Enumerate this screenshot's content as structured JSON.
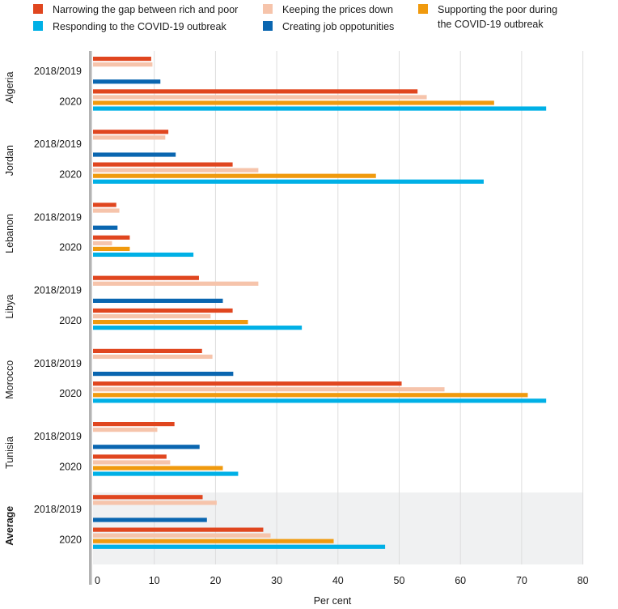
{
  "chart_data": {
    "type": "bar",
    "orientation": "horizontal",
    "xlabel": "Per cent",
    "xlim": [
      0,
      80
    ],
    "xticks": [
      0,
      10,
      20,
      30,
      40,
      50,
      60,
      70,
      80
    ],
    "grid": true,
    "legend_position": "top",
    "series": [
      {
        "key": "gap",
        "name": "Narrowing the gap between rich and poor",
        "color": "#e0461f"
      },
      {
        "key": "prices",
        "name": "Keeping the prices down",
        "color": "#f6c4ab"
      },
      {
        "key": "covid_poor",
        "name": [
          "Supporting the poor during",
          "the COVID-19 outbreak"
        ],
        "color": "#f09a0e"
      },
      {
        "key": "covid",
        "name": "Responding to the COVID-19 outbreak",
        "color": "#00b0e6"
      },
      {
        "key": "jobs",
        "name": "Creating job oppotunities",
        "color": "#0a66b0"
      }
    ],
    "groups": [
      {
        "name": "Algeria",
        "bold": false,
        "highlight": false,
        "periods": [
          {
            "label": "2018/2019",
            "values": {
              "gap": 9.5,
              "prices": 9.7,
              "jobs": 11
            }
          },
          {
            "label": "2020",
            "values": {
              "gap": 53,
              "prices": 54.5,
              "covid_poor": 65.5,
              "covid": 74
            }
          }
        ]
      },
      {
        "name": "Jordan",
        "bold": false,
        "highlight": false,
        "periods": [
          {
            "label": "2018/2019",
            "values": {
              "gap": 12.3,
              "prices": 11.8,
              "jobs": 13.5
            }
          },
          {
            "label": "2020",
            "values": {
              "gap": 22.8,
              "prices": 27,
              "covid_poor": 46.2,
              "covid": 63.8
            }
          }
        ]
      },
      {
        "name": "Lebanon",
        "bold": false,
        "highlight": false,
        "periods": [
          {
            "label": "2018/2019",
            "values": {
              "gap": 3.8,
              "prices": 4.3,
              "jobs": 4
            }
          },
          {
            "label": "2020",
            "values": {
              "gap": 6,
              "prices": 3.1,
              "covid_poor": 6,
              "covid": 16.4
            }
          }
        ]
      },
      {
        "name": "Libya",
        "bold": false,
        "highlight": false,
        "periods": [
          {
            "label": "2018/2019",
            "values": {
              "gap": 17.3,
              "prices": 27,
              "jobs": 21.2
            }
          },
          {
            "label": "2020",
            "values": {
              "gap": 22.8,
              "prices": 19.2,
              "covid_poor": 25.3,
              "covid": 34.1
            }
          }
        ]
      },
      {
        "name": "Morocco",
        "bold": false,
        "highlight": false,
        "periods": [
          {
            "label": "2018/2019",
            "values": {
              "gap": 17.8,
              "prices": 19.5,
              "jobs": 22.9
            }
          },
          {
            "label": "2020",
            "values": {
              "gap": 50.4,
              "prices": 57.4,
              "covid_poor": 71,
              "covid": 74
            }
          }
        ]
      },
      {
        "name": "Tunisia",
        "bold": false,
        "highlight": false,
        "periods": [
          {
            "label": "2018/2019",
            "values": {
              "gap": 13.3,
              "prices": 10.5,
              "jobs": 17.4
            }
          },
          {
            "label": "2020",
            "values": {
              "gap": 12,
              "prices": 12.6,
              "covid_poor": 21.2,
              "covid": 23.7
            }
          }
        ]
      },
      {
        "name": "Average",
        "bold": true,
        "highlight": true,
        "periods": [
          {
            "label": "2018/2019",
            "values": {
              "gap": 17.9,
              "prices": 20.2,
              "jobs": 18.6
            }
          },
          {
            "label": "2020",
            "values": {
              "gap": 27.8,
              "prices": 29,
              "covid_poor": 39.3,
              "covid": 47.7
            }
          }
        ]
      }
    ]
  },
  "colors": {
    "highlight_band": "#f0f1f2",
    "grid": "#dddddd",
    "axis": "#b3b3b3"
  }
}
